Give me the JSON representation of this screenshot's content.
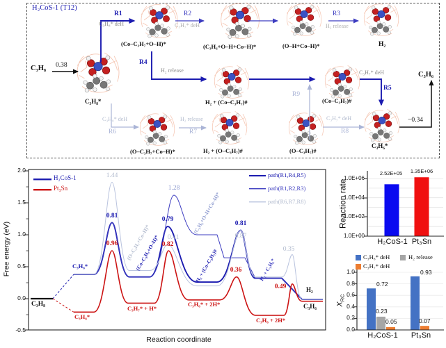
{
  "top_panel": {
    "title": "H₂CoS-1 (T12)",
    "reactant": "C₃H₈",
    "product_top": "C₃H₆",
    "adsorption_energy": "0.38",
    "desorption_energy": "−0.34",
    "species": {
      "s1": "C₃H₈*",
      "s2": "(Co–C₃H₇+O–H)*",
      "s3": "(C₃H₆+O–H+Co–H)*",
      "s4": "(O–H+Co–H)*",
      "s5": "H₂",
      "s6": "H₂ + (Co–C₃H₇)#",
      "s7": "(Co–C₃H₇)#",
      "s8": "C₃H₆*",
      "s9": "(O–C₃H₇+Co–H)*",
      "s10": "H₂ + (O–C₃H₇)#",
      "s11": "(O–C₃H₇)#"
    },
    "reactions": {
      "r1": {
        "id": "R1",
        "note": "C₃H₈* deH"
      },
      "r2": {
        "id": "R2",
        "note": "C₃H₇* deH"
      },
      "r3": {
        "id": "R3",
        "note": "H₂ release"
      },
      "r4": {
        "id": "R4",
        "note": "H₂ release"
      },
      "r5": {
        "id": "R5",
        "note": "C₃H₇* deH"
      },
      "r6": {
        "id": "R6",
        "note": "C₃H₈* deH"
      },
      "r7": {
        "id": "R7",
        "note": "H₂ release"
      },
      "r8": {
        "id": "R8",
        "note": "C₃H₇* deH"
      },
      "r9": {
        "id": "R9"
      }
    }
  },
  "chart_data": [
    {
      "type": "line",
      "xlabel": "Reaction coordinate",
      "ylabel": "Free energy (eV)",
      "ylim": [
        -0.5,
        2.0
      ],
      "yticks": [
        "2.0",
        "1.5",
        "1.0",
        "0.5",
        "0.0",
        "-0.5"
      ],
      "legend": [
        {
          "label": "H₂CoS-1",
          "color": "#1b1bb0"
        },
        {
          "label": "Pt₃Sn",
          "color": "#cc1414"
        }
      ],
      "path_legend": [
        {
          "label": "path(R1,R4,R5)",
          "color": "#1b1bb0"
        },
        {
          "label": "path(R1,R2,R3)",
          "color": "#3c3cc0"
        },
        {
          "label": "path(R6,R7,R8)",
          "color": "#b9c3de"
        }
      ],
      "series": [
        {
          "name": "H2CoS-1 path(R1,R4,R5)",
          "color": "#1b1bb0",
          "width": 1.9,
          "segs": [
            [
              "M",
              106,
              0.38
            ],
            [
              "H",
              135
            ],
            [
              "P",
              161,
              1.19,
              186,
              0.34
            ],
            [
              "H",
              215
            ],
            [
              "P",
              241,
              1.13,
              283,
              0.26
            ],
            [
              "H",
              312
            ],
            [
              "P",
              346,
              1.07,
              367,
              0.32
            ],
            [
              "H",
              405
            ],
            [
              "L",
              434,
              -0.01
            ],
            [
              "H",
              464
            ]
          ]
        },
        {
          "name": "H2CoS-1 path(R1,R2,R3)",
          "color": "#3c3cc0",
          "width": 1.0,
          "segs": [
            [
              "M",
              106,
              0.38
            ],
            [
              "H",
              135
            ],
            [
              "P",
              161,
              1.19,
              186,
              0.34
            ],
            [
              "H",
              215
            ],
            [
              "P",
              250,
              1.62,
              283,
              1.0
            ],
            [
              "H",
              312
            ],
            [
              "L",
              322,
              0.64
            ],
            [
              "H",
              352
            ],
            [
              "L",
              367,
              0.32
            ],
            [
              "H",
              405
            ],
            [
              "L",
              434,
              -0.01
            ],
            [
              "H",
              464
            ]
          ]
        },
        {
          "name": "H2CoS-1 path(R6,R7,R8)",
          "color": "#b9c3de",
          "width": 1.0,
          "segs": [
            [
              "M",
              106,
              0.38
            ],
            [
              "H",
              135
            ],
            [
              "P",
              161,
              1.82,
              186,
              0.44
            ],
            [
              "H",
              215
            ],
            [
              "P",
              241,
              0.85,
              283,
              0.2
            ],
            [
              "H",
              312
            ],
            [
              "P",
              346,
              1.07,
              367,
              0.34
            ],
            [
              "H",
              405
            ],
            [
              "P",
              420,
              0.69,
              434,
              -0.01
            ],
            [
              "H",
              464
            ]
          ]
        },
        {
          "name": "Pt3Sn",
          "color": "#cc1414",
          "width": 1.6,
          "segs": [
            [
              "M",
              106,
              -0.21
            ],
            [
              "H",
              135
            ],
            [
              "P",
              161,
              0.75,
              184,
              -0.07
            ],
            [
              "H",
              222
            ],
            [
              "P",
              242,
              0.75,
              271,
              -0.02
            ],
            [
              "H",
              316
            ],
            [
              "P",
              340,
              0.34,
              367,
              -0.26
            ],
            [
              "H",
              408
            ],
            [
              "P",
              420,
              0.23,
              434,
              -0.04
            ],
            [
              "H",
              464
            ]
          ]
        },
        {
          "name": "C3H8 reference",
          "color": "#111111",
          "width": 2.2,
          "segs": [
            [
              "M",
              44,
              0.0
            ],
            [
              "H",
              76
            ]
          ]
        }
      ],
      "connectors": [
        {
          "color": "#1b1bb0",
          "segs": [
            [
              "M",
              76,
              0.0
            ],
            [
              "L",
              106,
              0.38
            ]
          ]
        },
        {
          "color": "#cc1414",
          "segs": [
            [
              "M",
              76,
              0.0
            ],
            [
              "L",
              106,
              -0.21
            ]
          ]
        }
      ],
      "barrier_labels": {
        "main": [
          "0.81",
          "0.79",
          "0.81"
        ],
        "mid": [
          "1.28"
        ],
        "alt": [
          "1.44",
          "0.41",
          "0.87",
          "0.35"
        ],
        "red": [
          "0.96",
          "0.82",
          "0.36",
          "0.49"
        ]
      },
      "state_labels": {
        "start": "C₃H₈",
        "ads_blue": "C₃H₈*",
        "ads_red": "C₃H₈*",
        "red_1": "C₃H₇* + H*",
        "red_2": "C₃H₆* + 2H*",
        "red_3": "C₃H₆ + 2H*",
        "final_h2": "H₂",
        "final_c3h6": "C₃H₆",
        "rot_light": "(O–C₃H₇+Co–H)*",
        "rot_blue": "(Co–C₃H₇+O–H)*",
        "rot_mid": "(C₃H₆+O–H+Co–H)*",
        "rot_main": "H₂ + (Co–C₃H₇)#",
        "rot_final": "H₂ + C₃H₆*"
      }
    },
    {
      "type": "bar",
      "ylabel": "Reaction rate",
      "yscale": "log",
      "ytick_labels": [
        "1.0E+06",
        "1.0E+04",
        "1.0E+02",
        "1.0E+00"
      ],
      "categories": [
        "H₂CoS-1",
        "Pt₃Sn"
      ],
      "values": [
        252000,
        1350000
      ],
      "value_labels": [
        "2.52E+05",
        "1.35E+06"
      ],
      "colors": [
        "#0a0af0",
        "#f01010"
      ]
    },
    {
      "type": "bar",
      "ylabel_main": "X",
      "ylabel_sub": "RC",
      "ylim": [
        0,
        1
      ],
      "ytick_labels": [
        "1.0",
        "0.8",
        "0.6",
        "0.4",
        "0.2",
        "0.0"
      ],
      "categories": [
        "H₂CoS-1",
        "Pt₃Sn"
      ],
      "series": [
        {
          "name": "C₃H₈* deH",
          "color": "#4472c4",
          "values": [
            0.72,
            0.93
          ],
          "labels": [
            "0.72",
            "0.93"
          ]
        },
        {
          "name": "H₂ release",
          "color": "#a6a6a6",
          "values": [
            0.23,
            null
          ],
          "labels": [
            "0.23",
            ""
          ]
        },
        {
          "name": "C₃H₇* deH",
          "color": "#ed7d31",
          "values": [
            0.05,
            0.07
          ],
          "labels": [
            "0.05",
            "0.07"
          ]
        }
      ]
    }
  ]
}
